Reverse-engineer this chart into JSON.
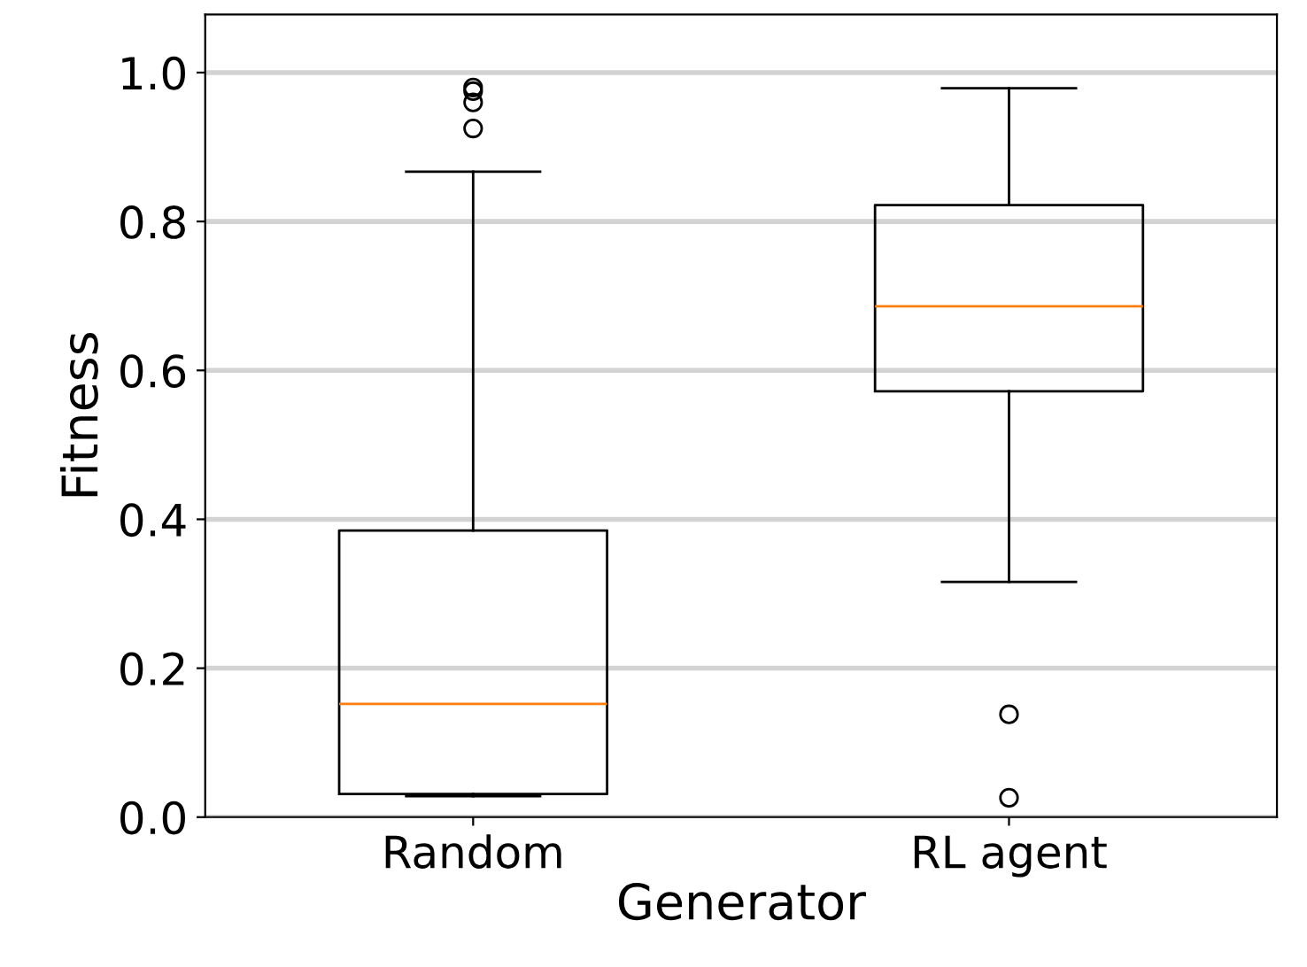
{
  "chart_data": {
    "type": "box",
    "xlabel": "Generator",
    "ylabel": "Fitness",
    "categories": [
      "Random",
      "RL agent"
    ],
    "boxes": [
      {
        "low": 0.028,
        "q1": 0.031,
        "median": 0.152,
        "q3": 0.385,
        "high": 0.867,
        "outliers": [
          0.98,
          0.975,
          0.96,
          0.925
        ]
      },
      {
        "low": 0.316,
        "q1": 0.572,
        "median": 0.686,
        "q3": 0.822,
        "high": 0.979,
        "outliers": [
          0.138,
          0.026
        ]
      }
    ],
    "ylim": [
      0,
      1.078
    ],
    "yticks": [
      {
        "value": 0.0,
        "label": "0.0"
      },
      {
        "value": 0.2,
        "label": "0.2"
      },
      {
        "value": 0.4,
        "label": "0.4"
      },
      {
        "value": 0.6,
        "label": "0.6"
      },
      {
        "value": 0.8,
        "label": "0.8"
      },
      {
        "value": 1.0,
        "label": "1.0"
      }
    ],
    "grid": "y"
  }
}
